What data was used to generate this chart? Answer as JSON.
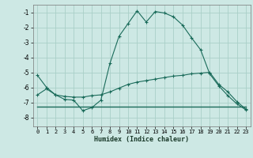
{
  "xlabel": "Humidex (Indice chaleur)",
  "bg_color": "#cde8e4",
  "grid_color": "#aacfc8",
  "line_color": "#1a6b5a",
  "xlim": [
    -0.5,
    23.5
  ],
  "ylim": [
    -8.6,
    -0.5
  ],
  "yticks": [
    -8,
    -7,
    -6,
    -5,
    -4,
    -3,
    -2,
    -1
  ],
  "xticks": [
    0,
    1,
    2,
    3,
    4,
    5,
    6,
    7,
    8,
    9,
    10,
    11,
    12,
    13,
    14,
    15,
    16,
    17,
    18,
    19,
    20,
    21,
    22,
    23
  ],
  "curve1_x": [
    0,
    1,
    2,
    3,
    4,
    5,
    6,
    7,
    8,
    9,
    10,
    11,
    12,
    13,
    14,
    15,
    16,
    17,
    18,
    19,
    20,
    21,
    22,
    23
  ],
  "curve1_y": [
    -5.2,
    -6.0,
    -6.5,
    -6.8,
    -6.85,
    -7.55,
    -7.35,
    -6.85,
    -4.4,
    -2.6,
    -1.75,
    -0.9,
    -1.65,
    -0.95,
    -1.05,
    -1.3,
    -1.85,
    -2.7,
    -3.5,
    -5.1,
    -5.9,
    -6.55,
    -7.1,
    -7.5
  ],
  "curve2_x": [
    0,
    1,
    2,
    3,
    4,
    5,
    6,
    7,
    8,
    9,
    10,
    11,
    12,
    13,
    14,
    15,
    16,
    17,
    18,
    19,
    20,
    21,
    22,
    23
  ],
  "curve2_y": [
    -6.5,
    -6.1,
    -6.5,
    -6.6,
    -6.65,
    -6.65,
    -6.55,
    -6.5,
    -6.3,
    -6.05,
    -5.8,
    -5.65,
    -5.55,
    -5.45,
    -5.35,
    -5.25,
    -5.2,
    -5.1,
    -5.05,
    -5.0,
    -5.8,
    -6.3,
    -6.95,
    -7.45
  ],
  "curve3_x": [
    0,
    23
  ],
  "curve3_y": [
    -7.3,
    -7.3
  ]
}
